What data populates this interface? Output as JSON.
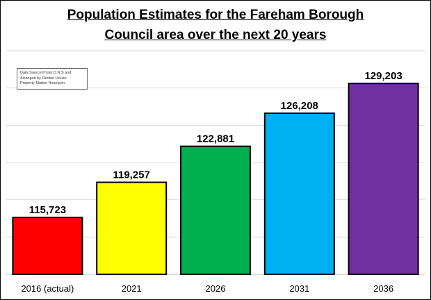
{
  "title_line1": "Population Estimates for the Fareham Borough",
  "title_line2": "Council area over the next 20 years",
  "source_note": {
    "line1": "Data Sourced from O.N.S and",
    "line2": "Arranged by Denton House",
    "line3": "Property Market Research"
  },
  "colors": {
    "bars": [
      "#ff0000",
      "#ffff00",
      "#00b050",
      "#00b0f0",
      "#7030a0"
    ],
    "grid": "#d9d9d9",
    "outline": "#000000"
  },
  "chart_data": {
    "type": "bar",
    "title": "Population Estimates for the Fareham Borough Council area over the next 20 years",
    "categories": [
      "2016 (actual)",
      "2021",
      "2026",
      "2031",
      "2036"
    ],
    "values": [
      115723,
      119257,
      122881,
      126208,
      129203
    ],
    "value_labels": [
      "115,723",
      "119,257",
      "122,881",
      "126,208",
      "129,203"
    ],
    "xlabel": "",
    "ylabel": "",
    "ylim": [
      110000,
      132500
    ],
    "grid": true,
    "legend": "none"
  }
}
